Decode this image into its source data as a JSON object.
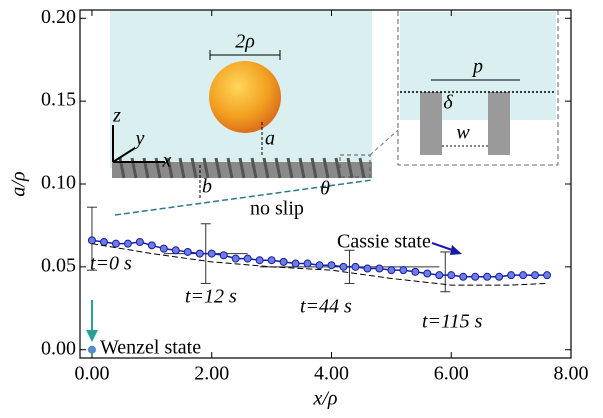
{
  "chart_data": {
    "type": "line",
    "x_label": "x/ρ",
    "y_label": "a/ρ",
    "xlim": [
      -0.2,
      8.0
    ],
    "ylim": [
      -0.005,
      0.205
    ],
    "xticks": [
      {
        "value": 0,
        "label": "0.00"
      },
      {
        "value": 2,
        "label": "2.00"
      },
      {
        "value": 4,
        "label": "4.00"
      },
      {
        "value": 6,
        "label": "6.00"
      },
      {
        "value": 8,
        "label": "8.00"
      }
    ],
    "yticks": [
      {
        "value": 0,
        "label": "0.00"
      },
      {
        "value": 0.05,
        "label": "0.05"
      },
      {
        "value": 0.1,
        "label": "0.10"
      },
      {
        "value": 0.15,
        "label": "0.15"
      },
      {
        "value": 0.2,
        "label": "0.20"
      }
    ],
    "series": [
      {
        "color": "#1a1aa6",
        "marker": true,
        "x": [
          0,
          0.2,
          0.4,
          0.6,
          0.8,
          1.0,
          1.2,
          1.4,
          1.6,
          1.8,
          2.0,
          2.2,
          2.4,
          2.6,
          2.8,
          3.0,
          3.2,
          3.4,
          3.6,
          3.8,
          4.0,
          4.2,
          4.4,
          4.6,
          4.8,
          5.0,
          5.2,
          5.4,
          5.6,
          5.8,
          6.0,
          6.2,
          6.4,
          6.6,
          6.8,
          7.0,
          7.2,
          7.4,
          7.6
        ],
        "values": [
          0.066,
          0.065,
          0.064,
          0.064,
          0.065,
          0.063,
          0.061,
          0.06,
          0.059,
          0.058,
          0.058,
          0.057,
          0.055,
          0.055,
          0.054,
          0.054,
          0.053,
          0.052,
          0.052,
          0.051,
          0.051,
          0.05,
          0.05,
          0.049,
          0.049,
          0.048,
          0.048,
          0.047,
          0.046,
          0.045,
          0.045,
          0.044,
          0.044,
          0.044,
          0.044,
          0.045,
          0.045,
          0.045,
          0.045
        ]
      },
      {
        "color": "#000000",
        "marker": false,
        "dashed": true,
        "x": [
          0,
          1,
          2,
          3,
          4,
          5,
          6,
          7,
          7.6
        ],
        "values": [
          0.064,
          0.058,
          0.053,
          0.05,
          0.048,
          0.043,
          0.039,
          0.039,
          0.04
        ]
      },
      {
        "color": "#2aa198",
        "marker": true,
        "x": [
          0
        ],
        "values": [
          0.0
        ]
      }
    ],
    "errorbars": {
      "color": "#333333",
      "x": [
        0,
        1.9,
        4.3,
        5.9
      ],
      "values": [
        0.067,
        0.058,
        0.05,
        0.047
      ],
      "yerr": [
        0.019,
        0.018,
        0.01,
        0.012
      ],
      "xerr": [
        0,
        0.7,
        1.5,
        0
      ]
    },
    "annotations": [
      "t=0 s",
      "t=12 s",
      "t=44 s",
      "t=115 s",
      "Cassie state",
      "Wenzel state",
      "2ρ",
      "z",
      "y",
      "x",
      "a",
      "b",
      "θ",
      "no slip",
      "p",
      "δ",
      "w"
    ]
  }
}
